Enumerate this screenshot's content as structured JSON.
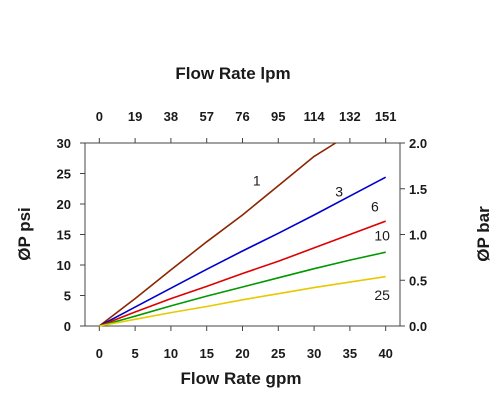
{
  "chart_data": {
    "type": "line",
    "title": "",
    "xlabel": "Flow Rate gpm",
    "x2label": "Flow Rate lpm",
    "ylabel": "ØP psi",
    "y2label": "ØP bar",
    "xlim": [
      -2,
      42
    ],
    "ylim": [
      0,
      30
    ],
    "y2lim": [
      0,
      2.0
    ],
    "x_ticks": [
      "0",
      "5",
      "10",
      "15",
      "20",
      "25",
      "30",
      "35",
      "40"
    ],
    "x_tick_values": [
      0,
      5,
      10,
      15,
      20,
      25,
      30,
      35,
      40
    ],
    "x2_ticks": [
      "0",
      "19",
      "38",
      "57",
      "76",
      "95",
      "114",
      "132",
      "151"
    ],
    "y_ticks": [
      "0",
      "5",
      "10",
      "15",
      "20",
      "25",
      "30"
    ],
    "y_tick_values": [
      0,
      5,
      10,
      15,
      20,
      25,
      30
    ],
    "y2_ticks": [
      "0.0",
      "0.5",
      "1.0",
      "1.5",
      "2.0"
    ],
    "y2_tick_values": [
      0,
      0.5,
      1.0,
      1.5,
      2.0
    ],
    "grid": false,
    "series": [
      {
        "label": "1",
        "color": "#8B2500",
        "x": [
          0,
          5,
          10,
          15,
          20,
          25,
          30,
          33
        ],
        "y": [
          0,
          4.5,
          9.2,
          13.8,
          18.2,
          23,
          27.8,
          30
        ]
      },
      {
        "label": "3",
        "color": "#0000CC",
        "x": [
          0,
          5,
          10,
          15,
          20,
          25,
          30,
          35,
          40
        ],
        "y": [
          0,
          3.1,
          6.2,
          9.3,
          12.3,
          15.2,
          18.2,
          21.3,
          24.4
        ]
      },
      {
        "label": "6",
        "color": "#DD0000",
        "x": [
          0,
          5,
          10,
          15,
          20,
          25,
          30,
          35,
          40
        ],
        "y": [
          0,
          2.3,
          4.5,
          6.5,
          8.6,
          10.6,
          12.8,
          15,
          17.2
        ]
      },
      {
        "label": "10",
        "color": "#009900",
        "x": [
          0,
          5,
          10,
          15,
          20,
          25,
          30,
          35,
          40
        ],
        "y": [
          0,
          1.6,
          3.3,
          4.9,
          6.4,
          7.9,
          9.4,
          10.8,
          12.1
        ]
      },
      {
        "label": "25",
        "color": "#E8C800",
        "x": [
          0,
          5,
          10,
          15,
          20,
          25,
          30,
          35,
          40
        ],
        "y": [
          0,
          1.1,
          2.2,
          3.2,
          4.3,
          5.3,
          6.3,
          7.2,
          8.1
        ]
      }
    ],
    "series_label_positions": [
      {
        "x": 22,
        "y": 23
      },
      {
        "x": 33.5,
        "y": 21.2
      },
      {
        "x": 38.5,
        "y": 18.8
      },
      {
        "x": 39.5,
        "y": 14
      },
      {
        "x": 39.5,
        "y": 4.3
      }
    ]
  }
}
